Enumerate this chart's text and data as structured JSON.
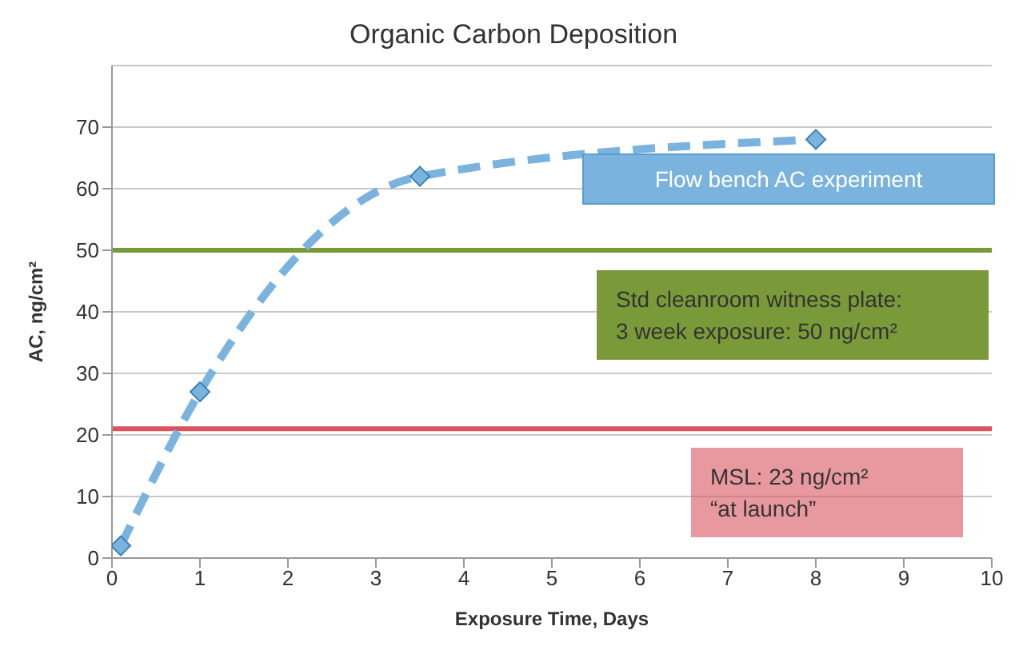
{
  "chart_data": {
    "type": "line",
    "title": "Organic Carbon Deposition",
    "xlabel": "Exposure Time, Days",
    "ylabel": "AC, ng/cm²",
    "x": [
      0.1,
      1,
      3.5,
      8
    ],
    "series": [
      {
        "name": "Flow bench AC experiment",
        "color": "#7ab4de",
        "values": [
          2,
          27,
          62,
          68
        ]
      }
    ],
    "xlim": [
      0,
      10
    ],
    "xticks": [
      0,
      1,
      2,
      3,
      4,
      5,
      6,
      7,
      8,
      9,
      10
    ],
    "ylim": [
      0,
      80
    ],
    "yticks": [
      0,
      10,
      20,
      30,
      40,
      50,
      60,
      70
    ],
    "grid": "y",
    "legend": "top right",
    "marker": "diamond",
    "line_style": "dashed",
    "ref_lines": [
      {
        "axis": "y",
        "value": 50,
        "color": "#7a9a3a"
      },
      {
        "axis": "y",
        "value": 21,
        "color": "#d9545f"
      }
    ],
    "annotations": [
      "Std cleanroom witness plate:\n3 week exposure: 50 ng/cm²",
      "MSL: 23 ng/cm²\n“at launch”"
    ]
  }
}
